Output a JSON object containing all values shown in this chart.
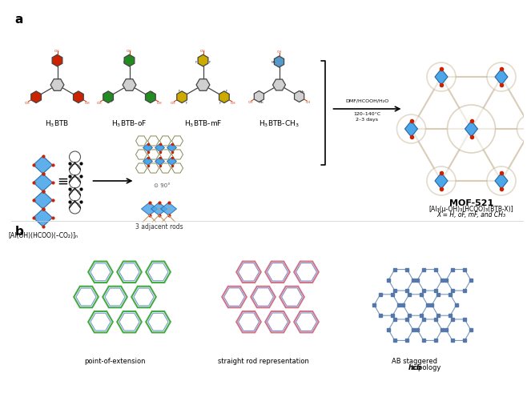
{
  "title_a": "a",
  "title_b": "b",
  "panel_a_labels": {
    "mol1": "H₃BTB",
    "mol2": "H₃BTB-οF",
    "mol3": "H₃BTB-mF",
    "mol4": "H₃BTB-CH₃"
  },
  "reaction_conditions": "DMF/HCOOH/H₂O\n120–140°C\n2–3 days",
  "formula_sbu": "[Al(OH)(HCOO)(–CO₂)]ₙ",
  "label_3rods": "3 adjacent rods",
  "mof_name": "MOF-521",
  "mof_formula_line1": "[Al₃(μ-OH)₃(HCOO)₃(BTB-X)]",
  "mof_formula_line2": "X = H, οF, mF, and CH₃",
  "panel_b_labels": [
    "point-of-extension",
    "straight rod representation",
    "AB staggered hcb topology"
  ],
  "bg_color": "#ffffff",
  "ring_color_btb": "#cc2200",
  "ring_color_btbof": "#228B22",
  "ring_color_btbmf": "#ccaa00",
  "ring_color_btbch3_center": "#5599cc",
  "sbu_color": "#4da6e8",
  "carboxyl_color": "#cc3300",
  "bond_color": "#888888",
  "node_color": "#cc3300",
  "arrow_color": "#222222",
  "topology_b1_color": "#44aa44",
  "topology_b2_color_rod": "#cc7788",
  "topology_b2_color_lig": "#8888cc",
  "topology_b3_color": "#5577aa"
}
